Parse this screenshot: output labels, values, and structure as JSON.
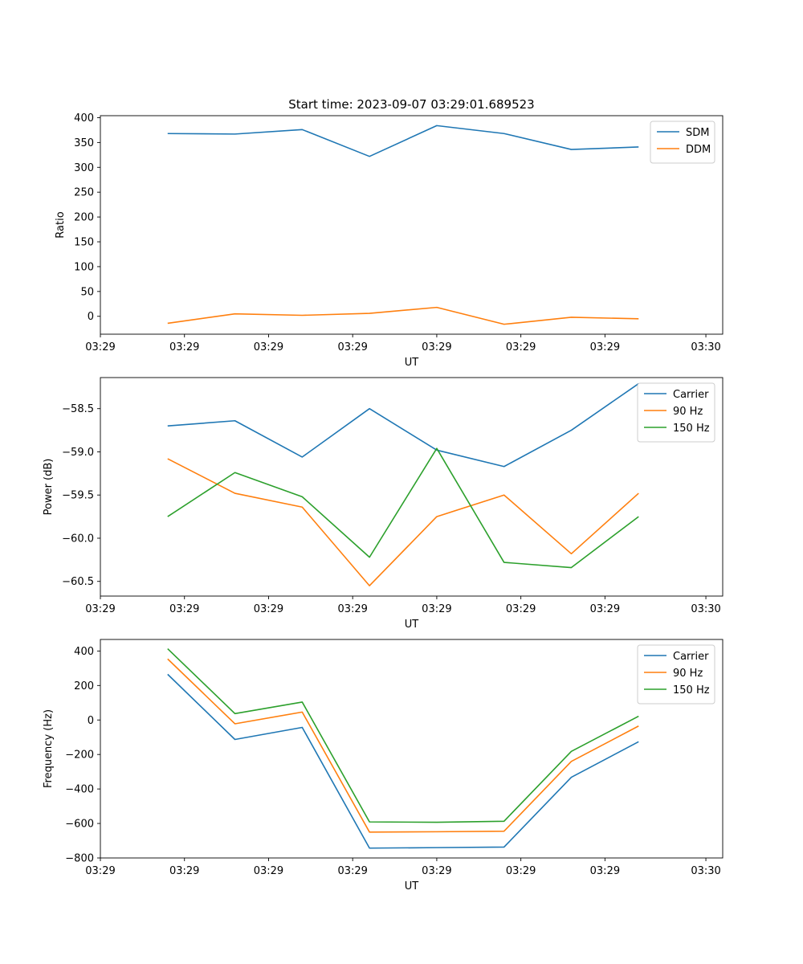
{
  "figure_title": "Start time: 2023-09-07 03:29:01.689523",
  "chart_data": [
    {
      "type": "line",
      "title": "Start time: 2023-09-07 03:29:01.689523",
      "xlabel": "UT",
      "ylabel": "Ratio",
      "x": [
        1,
        2,
        3,
        4,
        5,
        6,
        7,
        8
      ],
      "x_tick_labels": [
        "03:29",
        "03:29",
        "03:29",
        "03:29",
        "03:29",
        "03:29",
        "03:29"
      ],
      "x_last_tick_label": "03:30",
      "xlim": [
        0,
        9.25
      ],
      "ylim": [
        -36,
        404
      ],
      "y_ticks": [
        0,
        50,
        100,
        150,
        200,
        250,
        300,
        350,
        400
      ],
      "legend_position": "top-right",
      "series": [
        {
          "name": "SDM",
          "color": "#1f77b4",
          "values": [
            368,
            367,
            376,
            322,
            384,
            368,
            336,
            341
          ]
        },
        {
          "name": "DDM",
          "color": "#ff7f0e",
          "values": [
            -14,
            5,
            2,
            6,
            18,
            -16,
            -2,
            -5
          ]
        }
      ]
    },
    {
      "type": "line",
      "title": "",
      "xlabel": "UT",
      "ylabel": "Power (dB)",
      "x": [
        1,
        2,
        3,
        4,
        5,
        6,
        7,
        8
      ],
      "x_tick_labels": [
        "03:29",
        "03:29",
        "03:29",
        "03:29",
        "03:29",
        "03:29",
        "03:29"
      ],
      "x_last_tick_label": "03:30",
      "xlim": [
        0,
        9.25
      ],
      "ylim": [
        -60.67,
        -58.14
      ],
      "y_ticks": [
        -60.5,
        -60.0,
        -59.5,
        -59.0,
        -58.5
      ],
      "y_tick_labels": [
        "−60.5",
        "−60.0",
        "−59.5",
        "−59.0",
        "−58.5"
      ],
      "legend_position": "top-right",
      "series": [
        {
          "name": "Carrier",
          "color": "#1f77b4",
          "values": [
            -58.7,
            -58.64,
            -59.06,
            -58.5,
            -58.98,
            -59.17,
            -58.75,
            -58.21
          ]
        },
        {
          "name": "90 Hz",
          "color": "#ff7f0e",
          "values": [
            -59.08,
            -59.48,
            -59.64,
            -60.55,
            -59.75,
            -59.5,
            -60.18,
            -59.48
          ]
        },
        {
          "name": "150 Hz",
          "color": "#2ca02c",
          "values": [
            -59.75,
            -59.24,
            -59.52,
            -60.22,
            -58.96,
            -60.28,
            -60.34,
            -59.75
          ]
        }
      ]
    },
    {
      "type": "line",
      "title": "",
      "xlabel": "UT",
      "ylabel": "Frequency (Hz)",
      "x": [
        1,
        2,
        3,
        4,
        5,
        6,
        7,
        8
      ],
      "x_tick_labels": [
        "03:29",
        "03:29",
        "03:29",
        "03:29",
        "03:29",
        "03:29",
        "03:29"
      ],
      "x_last_tick_label": "03:30",
      "xlim": [
        0,
        9.25
      ],
      "ylim": [
        -800,
        467
      ],
      "y_ticks": [
        -800,
        -600,
        -400,
        -200,
        0,
        200,
        400
      ],
      "y_tick_labels": [
        "−800",
        "−600",
        "−400",
        "−200",
        "0",
        "200",
        "400"
      ],
      "legend_position": "top-right",
      "series": [
        {
          "name": "Carrier",
          "color": "#1f77b4",
          "values": [
            265,
            -113,
            -43,
            -743,
            -740,
            -737,
            -332,
            -126
          ]
        },
        {
          "name": "90 Hz",
          "color": "#ff7f0e",
          "values": [
            354,
            -22,
            46,
            -650,
            -648,
            -645,
            -240,
            -35
          ]
        },
        {
          "name": "150 Hz",
          "color": "#2ca02c",
          "values": [
            413,
            37,
            104,
            -591,
            -593,
            -587,
            -182,
            22
          ]
        }
      ]
    }
  ]
}
